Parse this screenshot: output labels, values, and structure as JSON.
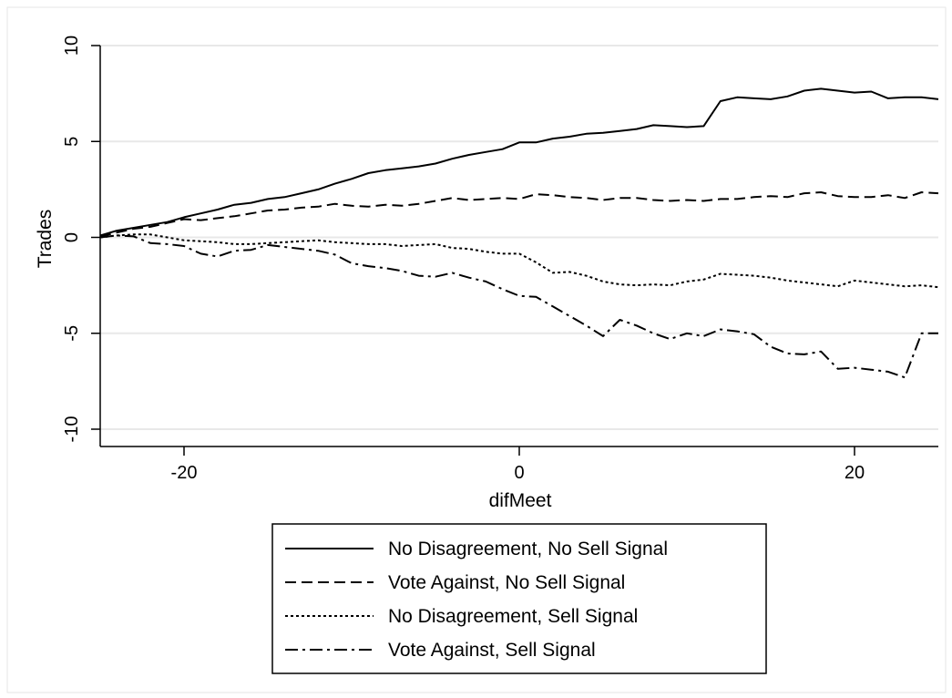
{
  "chart_data": {
    "type": "line",
    "title": "",
    "xlabel": "difMeet",
    "ylabel": "Trades",
    "xlim": [
      -25,
      25
    ],
    "ylim": [
      -10,
      10
    ],
    "xticks": [
      -20,
      0,
      20
    ],
    "yticks": [
      -10,
      -5,
      0,
      5,
      10
    ],
    "xtick_labels": [
      "-20",
      "0",
      "20"
    ],
    "ytick_labels": [
      "-10",
      "-5",
      "0",
      "5",
      "10"
    ],
    "grid": true,
    "legend_position": "bottom",
    "x": [
      -25,
      -24,
      -23,
      -22,
      -21,
      -20,
      -19,
      -18,
      -17,
      -16,
      -15,
      -14,
      -13,
      -12,
      -11,
      -10,
      -9,
      -8,
      -7,
      -6,
      -5,
      -4,
      -3,
      -2,
      -1,
      0,
      1,
      2,
      3,
      4,
      5,
      6,
      7,
      8,
      9,
      10,
      11,
      12,
      13,
      14,
      15,
      16,
      17,
      18,
      19,
      20,
      21,
      22,
      23,
      24,
      25
    ],
    "series": [
      {
        "name": "No Disagreement, No Sell Signal",
        "dash": "solid",
        "values": [
          0.1,
          0.35,
          0.5,
          0.65,
          0.8,
          1.05,
          1.25,
          1.45,
          1.7,
          1.8,
          2.0,
          2.1,
          2.3,
          2.5,
          2.8,
          3.05,
          3.35,
          3.5,
          3.6,
          3.7,
          3.85,
          4.1,
          4.3,
          4.45,
          4.6,
          4.95,
          4.95,
          5.15,
          5.25,
          5.4,
          5.45,
          5.55,
          5.65,
          5.85,
          5.8,
          5.75,
          5.8,
          7.1,
          7.3,
          7.25,
          7.2,
          7.35,
          7.65,
          7.75,
          7.65,
          7.55,
          7.6,
          7.25,
          7.3,
          7.3,
          7.2
        ]
      },
      {
        "name": "Vote Against, No Sell Signal",
        "dash": "dashed",
        "values": [
          0.05,
          0.25,
          0.45,
          0.55,
          0.75,
          0.95,
          0.9,
          1.0,
          1.1,
          1.25,
          1.4,
          1.45,
          1.55,
          1.6,
          1.75,
          1.65,
          1.6,
          1.7,
          1.65,
          1.75,
          1.9,
          2.05,
          1.95,
          2.0,
          2.05,
          2.0,
          2.25,
          2.2,
          2.1,
          2.05,
          1.95,
          2.05,
          2.05,
          1.95,
          1.9,
          1.95,
          1.9,
          2.0,
          2.0,
          2.1,
          2.15,
          2.1,
          2.3,
          2.35,
          2.15,
          2.1,
          2.1,
          2.2,
          2.05,
          2.35,
          2.3
        ]
      },
      {
        "name": "No Disagreement, Sell Signal",
        "dash": "dotted",
        "values": [
          0.0,
          0.1,
          0.15,
          0.15,
          0.0,
          -0.15,
          -0.2,
          -0.25,
          -0.35,
          -0.35,
          -0.3,
          -0.25,
          -0.2,
          -0.15,
          -0.25,
          -0.3,
          -0.35,
          -0.35,
          -0.45,
          -0.4,
          -0.35,
          -0.55,
          -0.6,
          -0.75,
          -0.85,
          -0.85,
          -1.3,
          -1.85,
          -1.8,
          -2.0,
          -2.3,
          -2.45,
          -2.5,
          -2.45,
          -2.5,
          -2.3,
          -2.2,
          -1.9,
          -1.95,
          -2.0,
          -2.1,
          -2.25,
          -2.35,
          -2.45,
          -2.55,
          -2.25,
          -2.35,
          -2.45,
          -2.55,
          -2.5,
          -2.6
        ]
      },
      {
        "name": "Vote Against, Sell Signal",
        "dash": "dashdot",
        "values": [
          0.0,
          0.1,
          0.05,
          -0.3,
          -0.35,
          -0.45,
          -0.85,
          -1.0,
          -0.7,
          -0.65,
          -0.4,
          -0.5,
          -0.6,
          -0.7,
          -0.9,
          -1.35,
          -1.5,
          -1.6,
          -1.75,
          -2.0,
          -2.05,
          -1.85,
          -2.1,
          -2.3,
          -2.7,
          -3.05,
          -3.1,
          -3.6,
          -4.1,
          -4.6,
          -5.15,
          -4.3,
          -4.6,
          -5.0,
          -5.3,
          -5.0,
          -5.15,
          -4.8,
          -4.9,
          -5.05,
          -5.7,
          -6.05,
          -6.1,
          -5.95,
          -6.85,
          -6.8,
          -6.9,
          -7.0,
          -7.3,
          -5.0,
          -5.0
        ]
      }
    ]
  }
}
